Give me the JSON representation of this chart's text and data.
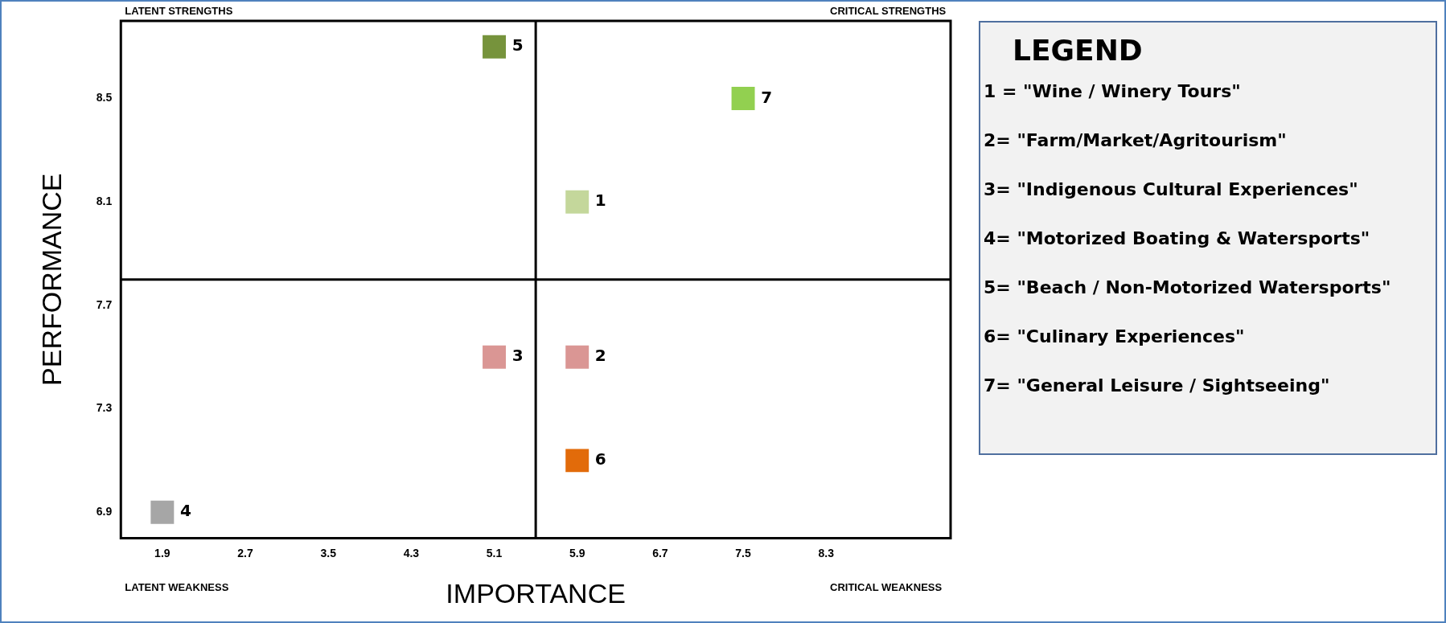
{
  "chart_data": {
    "type": "scatter",
    "xlabel": "IMPORTANCE",
    "ylabel": "PERFORMANCE",
    "legend_title": "LEGEND",
    "series": [
      {
        "name": "1",
        "color": "#c4d79b",
        "x": [
          5.9
        ],
        "values": [
          8.1
        ]
      },
      {
        "name": "2",
        "color": "#da9694",
        "x": [
          5.9
        ],
        "values": [
          7.5
        ]
      },
      {
        "name": "3",
        "color": "#da9694",
        "x": [
          5.1
        ],
        "values": [
          7.5
        ]
      },
      {
        "name": "4",
        "color": "#a6a6a6",
        "x": [
          1.9
        ],
        "values": [
          6.9
        ]
      },
      {
        "name": "5",
        "color": "#76933c",
        "x": [
          5.1
        ],
        "values": [
          8.7
        ]
      },
      {
        "name": "6",
        "color": "#e26b0a",
        "x": [
          5.9
        ],
        "values": [
          7.1
        ]
      },
      {
        "name": "7",
        "color": "#92d050",
        "x": [
          7.5
        ],
        "values": [
          8.5
        ]
      }
    ],
    "marker": "square",
    "xlim": [
      1.5,
      9.5
    ],
    "xticks": [
      1.9,
      2.7,
      3.5,
      4.3,
      5.1,
      5.9,
      6.7,
      7.5,
      8.3
    ],
    "ylim": [
      6.8,
      8.8
    ],
    "yticks": [
      6.9,
      7.3,
      7.7,
      8.1,
      8.5
    ],
    "ref_lines": [
      {
        "axis": "x",
        "value": 5.5,
        "color": "#000000"
      },
      {
        "axis": "y",
        "value": 7.8,
        "color": "#000000"
      }
    ],
    "annotations": [
      "LATENT STRENGTHS",
      "CRITICAL STRENGTHS",
      "LATENT WEAKNESS",
      "CRITICAL WEAKNESS",
      "1 = \"Wine / Winery Tours\"",
      "2= \"Farm/Market/Agritourism\"",
      "3= \"Indigenous Cultural Experiences\"",
      "4= \"Motorized Boating & Watersports\"",
      "5= \"Beach / Non-Motorized Watersports\"",
      "6= \"Culinary Experiences\"",
      "7= \"General Leisure / Sightseeing\""
    ]
  }
}
